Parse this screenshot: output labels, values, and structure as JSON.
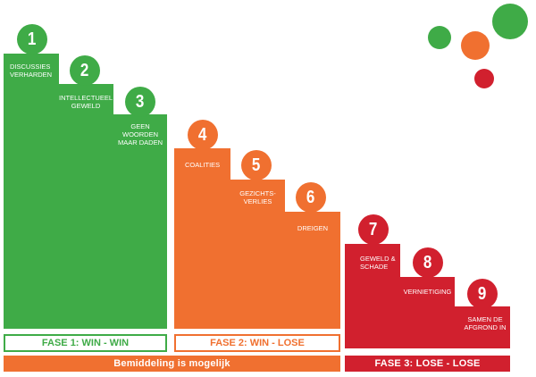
{
  "steps": [
    {
      "number": "1",
      "label": "DISCUSSIES\nVERHARDEN"
    },
    {
      "number": "2",
      "label": "INTELLECTUEEL\nGEWELD"
    },
    {
      "number": "3",
      "label": "GEEN\nWOORDEN\nMAAR DADEN"
    },
    {
      "number": "4",
      "label": "COALITIES"
    },
    {
      "number": "5",
      "label": "GEZICHTS-\nVERLIES"
    },
    {
      "number": "6",
      "label": "DREIGEN"
    },
    {
      "number": "7",
      "label": "GEWELD &\nSCHADE"
    },
    {
      "number": "8",
      "label": "VERNIETIGING"
    },
    {
      "number": "9",
      "label": "SAMEN DE\nAFGROND IN"
    }
  ],
  "phases": [
    {
      "label": "FASE 1: WIN - WIN",
      "color": "#3fab47"
    },
    {
      "label": "FASE 2: WIN - LOSE",
      "color": "#f07030"
    },
    {
      "label": "FASE 3: LOSE - LOSE",
      "color": "#d1202e"
    }
  ],
  "mediation_label": "Bemiddeling is mogelijk",
  "colors": {
    "green": "#3fab47",
    "orange": "#f07030",
    "red": "#d1202e"
  }
}
